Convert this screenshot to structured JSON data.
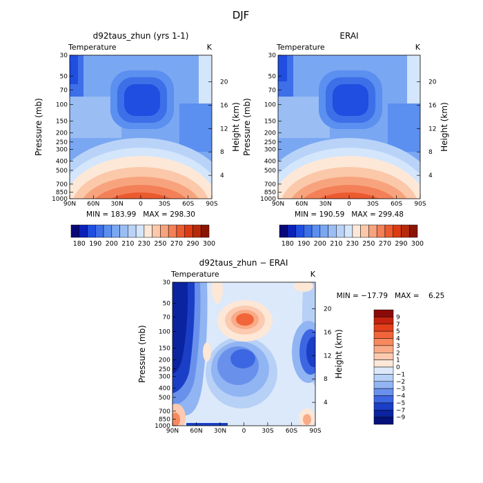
{
  "figure_title": "DJF",
  "chart_data": [
    {
      "type": "heatmap",
      "title": "d92taus_zhun (yrs 1-1)",
      "subtitle_left": "Temperature",
      "subtitle_right": "K",
      "ylabel": "Pressure (mb)",
      "ylabel_right": "Height (km)",
      "x_ticks": [
        "90N",
        "60N",
        "30N",
        "0",
        "30S",
        "60S",
        "90S"
      ],
      "y_ticks": [
        "30",
        "50",
        "70",
        "100",
        "150",
        "200",
        "250",
        "300",
        "400",
        "500",
        "700",
        "850",
        "1000"
      ],
      "y_ticks_right": [
        "20",
        "16",
        "12",
        "8",
        "4"
      ],
      "stats": "MIN = 183.99   MAX = 298.30",
      "colorbar_labels": [
        "180",
        "190",
        "200",
        "210",
        "230",
        "250",
        "270",
        "290",
        "300"
      ]
    },
    {
      "type": "heatmap",
      "title": "ERAI",
      "subtitle_left": "Temperature",
      "subtitle_right": "K",
      "ylabel": "Pressure (mb)",
      "ylabel_right": "Height (km)",
      "x_ticks": [
        "90N",
        "60N",
        "30N",
        "0",
        "30S",
        "60S",
        "90S"
      ],
      "y_ticks": [
        "30",
        "50",
        "70",
        "100",
        "150",
        "200",
        "250",
        "300",
        "400",
        "500",
        "700",
        "850",
        "1000"
      ],
      "y_ticks_right": [
        "20",
        "16",
        "12",
        "8",
        "4"
      ],
      "stats": "MIN = 190.59   MAX = 299.48",
      "colorbar_labels": [
        "180",
        "190",
        "200",
        "210",
        "230",
        "250",
        "270",
        "290",
        "300"
      ]
    },
    {
      "type": "heatmap",
      "title": "d92taus_zhun − ERAI",
      "subtitle_left": "Temperature",
      "subtitle_right": "K",
      "ylabel": "Pressure (mb)",
      "ylabel_right": "Height (km)",
      "x_ticks": [
        "90N",
        "60N",
        "30N",
        "0",
        "30S",
        "60S",
        "90S"
      ],
      "y_ticks": [
        "30",
        "50",
        "70",
        "100",
        "150",
        "200",
        "250",
        "300",
        "400",
        "500",
        "700",
        "850",
        "1000"
      ],
      "y_ticks_right": [
        "20",
        "16",
        "12",
        "8",
        "4"
      ],
      "stats": "MIN = −17.79   MAX =    6.25",
      "colorbar_labels": [
        "9",
        "7",
        "5",
        "4",
        "3",
        "2",
        "1",
        "0",
        "−1",
        "−2",
        "−3",
        "−4",
        "−5",
        "−7",
        "−9"
      ]
    }
  ],
  "colors": {
    "main_scale": [
      "#08087a",
      "#0a22b8",
      "#1f4ee0",
      "#3d6fe8",
      "#5b8ff0",
      "#7aa7f2",
      "#9abdf4",
      "#b9d3f8",
      "#d4e6fb",
      "#fde8d8",
      "#fbc8aa",
      "#f7a47e",
      "#f38058",
      "#ec5a30",
      "#dc3a12",
      "#b62a0c",
      "#8a1505"
    ],
    "diff_scale": [
      "#8a0a0a",
      "#c3230f",
      "#e2401c",
      "#f2653a",
      "#f7895e",
      "#f9ab87",
      "#fbcab0",
      "#fde7d7",
      "#dce9fa",
      "#b7d0f6",
      "#91b4f2",
      "#6991ec",
      "#3d66e2",
      "#1a3fc6",
      "#0a24a0",
      "#06127a"
    ]
  }
}
